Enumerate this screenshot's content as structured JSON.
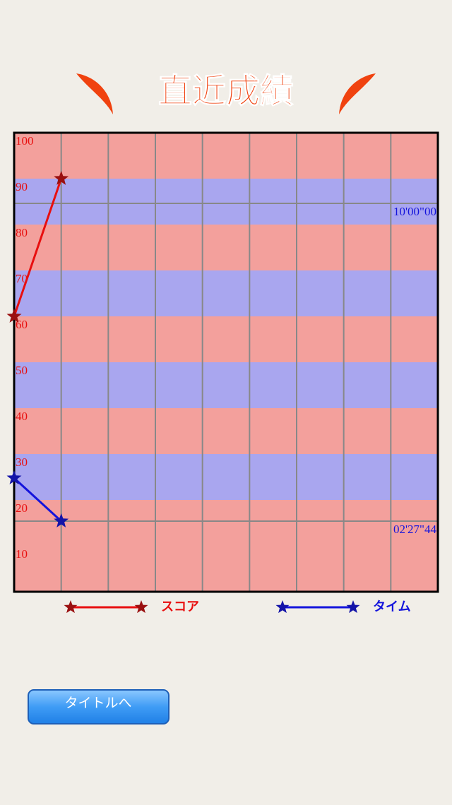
{
  "header": {
    "title": "直近成績"
  },
  "chart_data": {
    "type": "line",
    "categories": [
      null,
      null,
      null,
      null,
      null,
      null,
      null,
      null,
      null,
      null
    ],
    "ylim": [
      0,
      100
    ],
    "yticks": [
      10,
      20,
      30,
      40,
      50,
      60,
      70,
      80,
      90,
      100
    ],
    "y2lim": [
      46.87,
      700.57
    ],
    "y2ticks": [
      {
        "value": 147.44,
        "label": "02'27\"44"
      },
      {
        "value": 600,
        "label": "10'00\"00"
      }
    ],
    "band_colors": [
      "#f3a09c",
      "#a9a6ef"
    ],
    "series": [
      {
        "name": "スコア",
        "color": "#e80f0f",
        "marker_color": "#9a1010",
        "values": [
          60,
          90,
          null,
          null,
          null,
          null,
          null,
          null,
          null,
          null
        ]
      },
      {
        "name": "タイム",
        "color": "#1414dc",
        "marker_color": "#1414a8",
        "axis": "y2",
        "values": [
          208.8,
          147.44,
          null,
          null,
          null,
          null,
          null,
          null,
          null,
          null
        ]
      }
    ]
  },
  "button": {
    "label": "タイトルへ"
  }
}
